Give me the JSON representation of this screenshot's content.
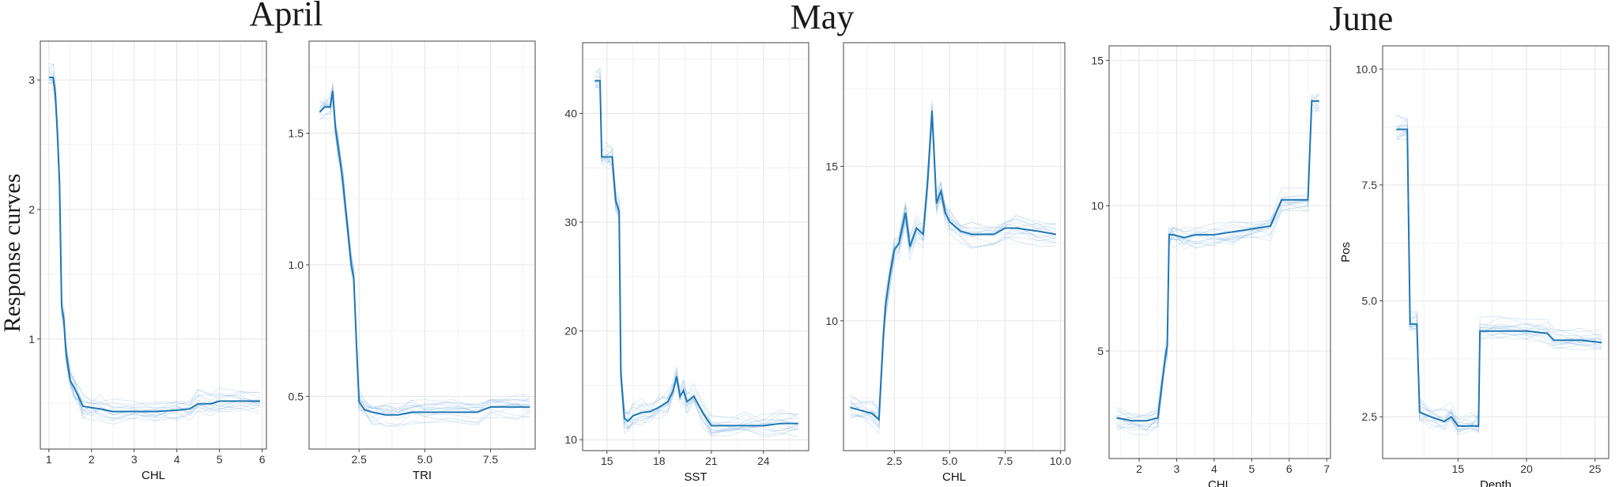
{
  "figure": {
    "months": [
      "April",
      "May",
      "June"
    ],
    "ylabel_main": "Response curves"
  },
  "chart_data": [
    {
      "type": "line",
      "month": "April",
      "xlabel": "CHL",
      "ylabel": "",
      "xlim": [
        0.8,
        6.1
      ],
      "ylim": [
        0.15,
        3.3
      ],
      "xticks": [
        1,
        2,
        3,
        4,
        5,
        6
      ],
      "xtick_labels": [
        "1",
        "2",
        "3",
        "4",
        "5",
        "6"
      ],
      "yticks": [
        1,
        2,
        3
      ],
      "ytick_labels": [
        "1",
        "2",
        "3"
      ],
      "grid": true,
      "series_color": "#1f77b4",
      "x": [
        1.0,
        1.1,
        1.15,
        1.2,
        1.25,
        1.3,
        1.35,
        1.4,
        1.5,
        1.6,
        1.7,
        1.8,
        2.0,
        2.2,
        2.5,
        3.0,
        3.5,
        4.0,
        4.3,
        4.5,
        4.8,
        5.0,
        5.5,
        5.95
      ],
      "y": [
        3.02,
        3.02,
        2.9,
        2.6,
        2.2,
        1.25,
        1.15,
        0.9,
        0.68,
        0.62,
        0.55,
        0.48,
        0.47,
        0.46,
        0.44,
        0.44,
        0.44,
        0.45,
        0.46,
        0.5,
        0.5,
        0.52,
        0.52,
        0.52
      ]
    },
    {
      "type": "line",
      "month": "April",
      "xlabel": "TRI",
      "ylabel": "",
      "xlim": [
        0.6,
        9.2
      ],
      "ylim": [
        0.3,
        1.85
      ],
      "xticks": [
        2.5,
        5.0,
        7.5
      ],
      "xtick_labels": [
        "2.5",
        "5.0",
        "7.5"
      ],
      "yticks": [
        0.5,
        1.0,
        1.5
      ],
      "ytick_labels": [
        "0.5",
        "1.0",
        "1.5"
      ],
      "grid": true,
      "series_color": "#1f77b4",
      "x": [
        1.0,
        1.2,
        1.4,
        1.5,
        1.6,
        1.7,
        1.8,
        1.9,
        2.0,
        2.1,
        2.2,
        2.3,
        2.4,
        2.5,
        2.7,
        3.0,
        3.5,
        4.0,
        4.5,
        5.0,
        6.0,
        7.0,
        7.5,
        8.5,
        9.0
      ],
      "y": [
        1.58,
        1.6,
        1.6,
        1.66,
        1.52,
        1.45,
        1.38,
        1.3,
        1.2,
        1.1,
        1.0,
        0.95,
        0.7,
        0.48,
        0.45,
        0.44,
        0.43,
        0.43,
        0.44,
        0.44,
        0.44,
        0.44,
        0.46,
        0.46,
        0.46
      ]
    },
    {
      "type": "line",
      "month": "May",
      "xlabel": "SST",
      "ylabel": "",
      "xlim": [
        13.6,
        26.6
      ],
      "ylim": [
        9.0,
        46.5
      ],
      "xticks": [
        15,
        18,
        21,
        24
      ],
      "xtick_labels": [
        "15",
        "18",
        "21",
        "24"
      ],
      "yticks": [
        10,
        20,
        30,
        40
      ],
      "ytick_labels": [
        "10",
        "20",
        "30",
        "40"
      ],
      "grid": true,
      "series_color": "#1f77b4",
      "x": [
        14.3,
        14.6,
        14.7,
        15.0,
        15.3,
        15.5,
        15.7,
        15.8,
        16.0,
        16.2,
        16.5,
        17.0,
        17.5,
        18.0,
        18.5,
        18.8,
        19.0,
        19.2,
        19.4,
        19.6,
        20.0,
        20.5,
        21.0,
        22.0,
        23.0,
        24.0,
        25.0,
        26.0
      ],
      "y": [
        43.0,
        43.0,
        36.0,
        36.0,
        36.0,
        32.0,
        31.0,
        16.0,
        12.0,
        11.7,
        12.2,
        12.5,
        12.6,
        13.0,
        13.5,
        14.5,
        15.8,
        14.0,
        14.5,
        13.5,
        14.0,
        12.5,
        11.3,
        11.3,
        11.3,
        11.3,
        11.5,
        11.5
      ]
    },
    {
      "type": "line",
      "month": "May",
      "xlabel": "CHL",
      "ylabel": "",
      "xlim": [
        0.2,
        10.2
      ],
      "ylim": [
        5.8,
        19.0
      ],
      "xticks": [
        2.5,
        5.0,
        7.5,
        10.0
      ],
      "xtick_labels": [
        "2.5",
        "5.0",
        "7.5",
        "10.0"
      ],
      "yticks": [
        10,
        15
      ],
      "ytick_labels": [
        "10",
        "15"
      ],
      "grid": true,
      "series_color": "#1f77b4",
      "x": [
        0.5,
        1.0,
        1.5,
        1.8,
        2.0,
        2.1,
        2.3,
        2.5,
        2.7,
        3.0,
        3.2,
        3.5,
        3.8,
        4.0,
        4.2,
        4.4,
        4.6,
        4.8,
        5.0,
        5.5,
        6.0,
        7.0,
        7.5,
        8.0,
        9.0,
        9.8
      ],
      "y": [
        7.2,
        7.1,
        7.0,
        6.8,
        9.5,
        10.5,
        11.5,
        12.3,
        12.5,
        13.5,
        12.4,
        13.0,
        12.8,
        14.5,
        16.8,
        13.8,
        14.2,
        13.5,
        13.2,
        12.9,
        12.8,
        12.8,
        13.0,
        13.0,
        12.9,
        12.8
      ]
    },
    {
      "type": "line",
      "month": "June",
      "xlabel": "CHL",
      "ylabel": "",
      "xlim": [
        1.2,
        7.1
      ],
      "ylim": [
        1.3,
        15.5
      ],
      "xticks": [
        2,
        3,
        4,
        5,
        6,
        7
      ],
      "xtick_labels": [
        "2",
        "3",
        "4",
        "5",
        "6",
        "7"
      ],
      "yticks": [
        5,
        10,
        15
      ],
      "ytick_labels": [
        "5",
        "10",
        "15"
      ],
      "grid": true,
      "series_color": "#1f77b4",
      "x": [
        1.4,
        1.8,
        2.2,
        2.5,
        2.6,
        2.7,
        2.75,
        2.8,
        2.9,
        3.2,
        3.5,
        4.0,
        4.5,
        5.0,
        5.5,
        5.8,
        6.5,
        6.6,
        6.8
      ],
      "y": [
        2.7,
        2.6,
        2.6,
        2.7,
        3.8,
        4.8,
        5.2,
        9.0,
        9.0,
        8.9,
        9.0,
        9.0,
        9.1,
        9.2,
        9.3,
        10.2,
        10.2,
        13.6,
        13.6
      ]
    },
    {
      "type": "line",
      "month": "June",
      "xlabel": "Depth",
      "ylabel": "Pos",
      "xlim": [
        9.5,
        26.0
      ],
      "ylim": [
        1.6,
        10.5
      ],
      "xticks": [
        15,
        20,
        25
      ],
      "xtick_labels": [
        "15",
        "20",
        "25"
      ],
      "yticks": [
        2.5,
        5.0,
        7.5,
        10.0
      ],
      "ytick_labels": [
        "2.5",
        "5.0",
        "7.5",
        "10.0"
      ],
      "grid": true,
      "series_color": "#1f77b4",
      "x": [
        10.5,
        11.3,
        11.5,
        12.0,
        12.2,
        13.0,
        14.0,
        14.5,
        15.0,
        16.0,
        16.5,
        16.6,
        18.0,
        20.0,
        21.5,
        22.0,
        24.0,
        25.5
      ],
      "y": [
        8.7,
        8.7,
        4.5,
        4.5,
        2.6,
        2.5,
        2.4,
        2.5,
        2.3,
        2.3,
        2.3,
        4.35,
        4.35,
        4.35,
        4.3,
        4.15,
        4.15,
        4.1
      ]
    }
  ]
}
